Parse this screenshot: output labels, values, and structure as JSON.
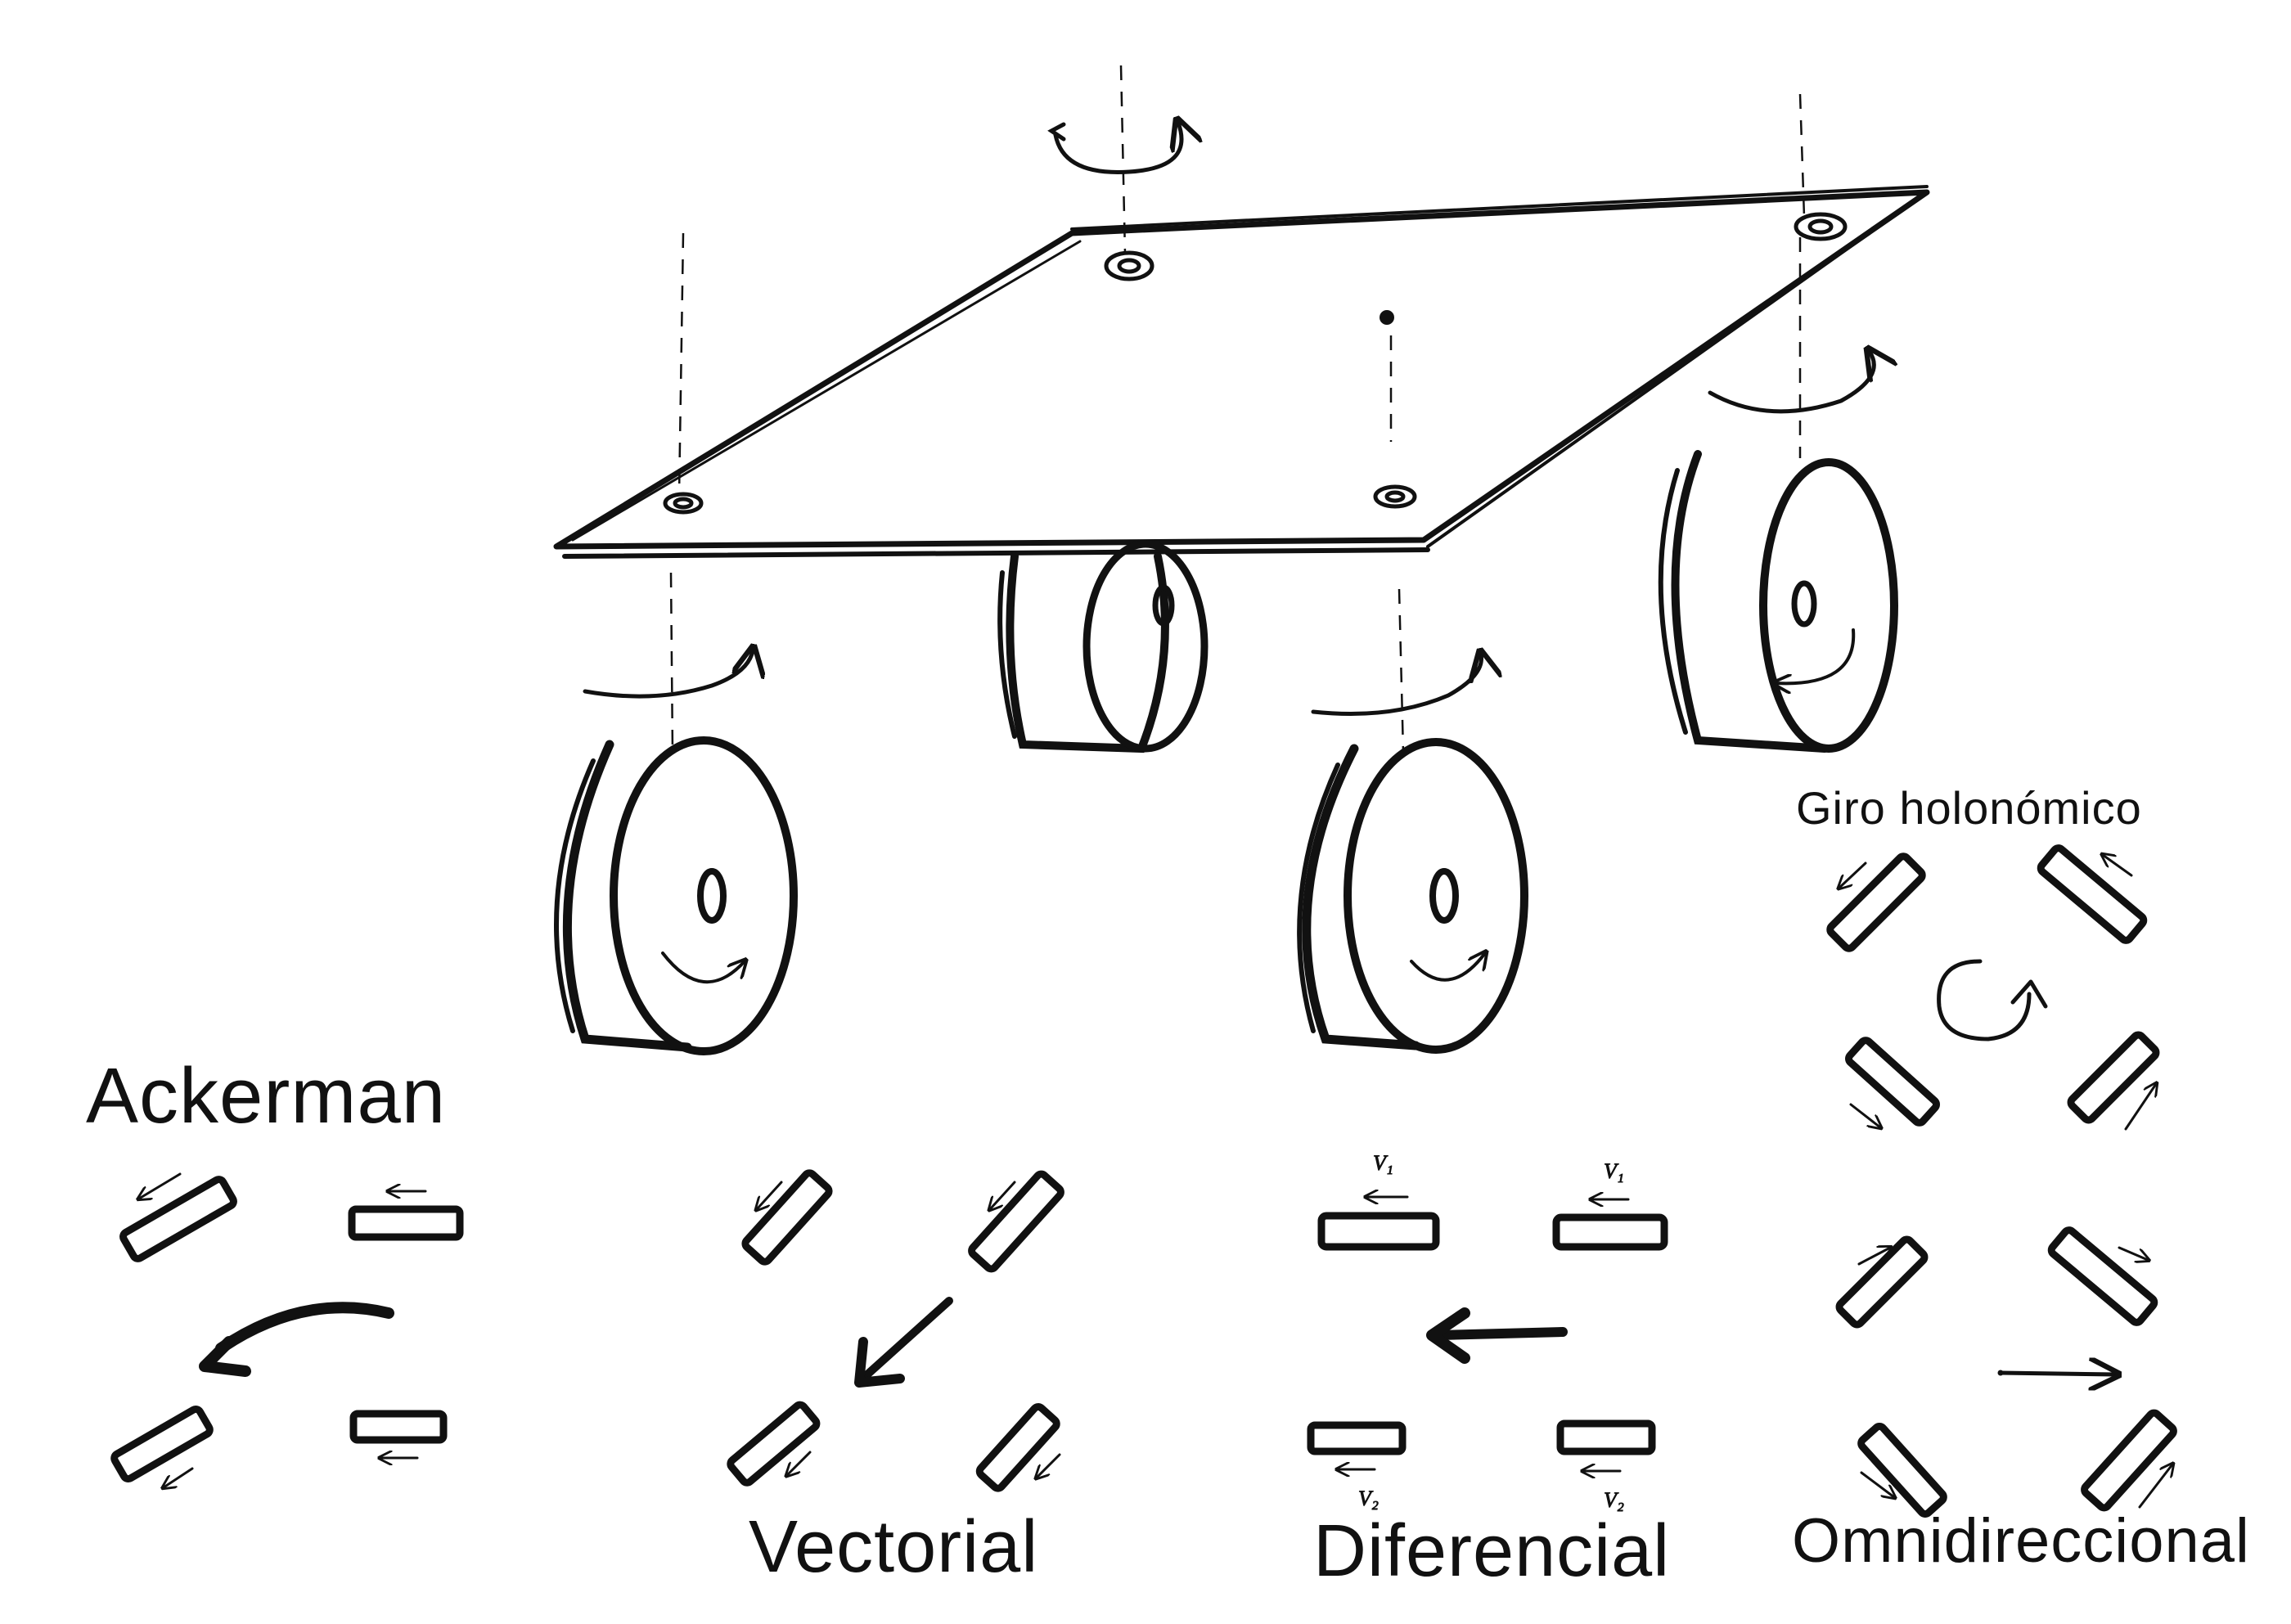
{
  "labels": {
    "ackerman": "Ackerman",
    "vectorial": "Vectorial",
    "diferencial": "Diferencial",
    "omnidireccional": "Omnidireccional",
    "giro_holonomico": "Giro holonómico",
    "v1": "V₁",
    "v2": "V₂"
  },
  "colors": {
    "ink": "#111111",
    "background": "#ffffff"
  }
}
